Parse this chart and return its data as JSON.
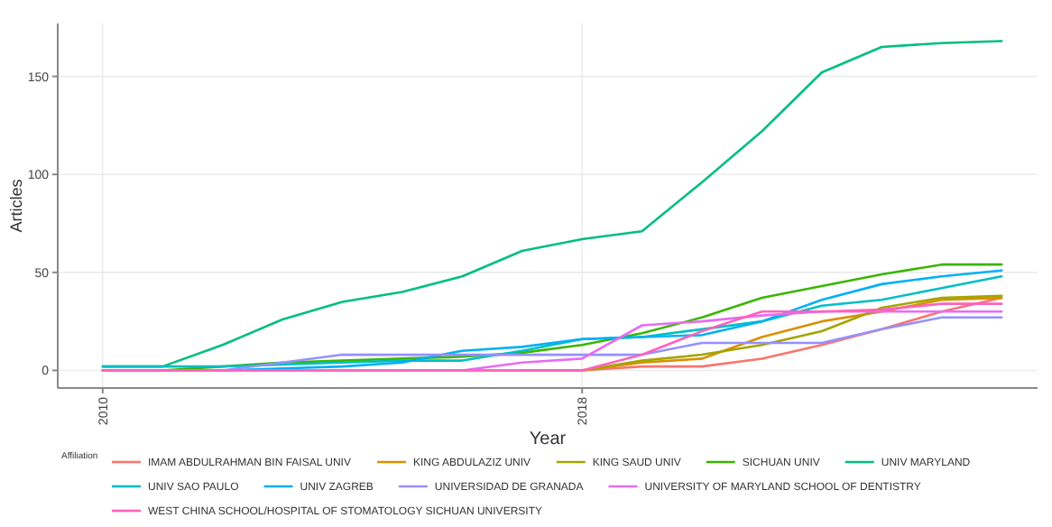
{
  "chart_data": {
    "type": "line",
    "xlabel": "Year",
    "ylabel": "Articles",
    "legend_title": "Affiliation",
    "legend": "bottom",
    "grid": true,
    "line_style": "solid",
    "marker": "none",
    "x": [
      2010,
      2011,
      2012,
      2013,
      2014,
      2015,
      2016,
      2017,
      2018,
      2019,
      2020,
      2021,
      2022,
      2023,
      2024,
      2025
    ],
    "xlim": [
      2009.25,
      2025.6
    ],
    "xticks": [
      2010,
      2018
    ],
    "ylim": [
      -9,
      177
    ],
    "yticks": [
      0,
      50,
      100,
      150
    ],
    "series": [
      {
        "name": "IMAM ABDULRAHMAN BIN FAISAL UNIV",
        "color": "#f8766d",
        "values": [
          null,
          null,
          null,
          null,
          null,
          0,
          0,
          0,
          0,
          2,
          2,
          6,
          13,
          21,
          30,
          37
        ]
      },
      {
        "name": "KING ABDULAZIZ UNIV",
        "color": "#d89000",
        "values": [
          null,
          null,
          null,
          null,
          null,
          null,
          null,
          0,
          0,
          4,
          6,
          17,
          25,
          30,
          36,
          37
        ]
      },
      {
        "name": "KING SAUD UNIV",
        "color": "#a3a500",
        "values": [
          null,
          null,
          null,
          null,
          null,
          null,
          null,
          0,
          0,
          5,
          8,
          13,
          20,
          32,
          37,
          38
        ]
      },
      {
        "name": "SICHUAN UNIV",
        "color": "#39b600",
        "values": [
          0,
          0,
          2,
          4,
          5,
          6,
          7,
          9,
          13,
          19,
          27,
          37,
          43,
          49,
          54,
          54
        ]
      },
      {
        "name": "UNIV MARYLAND",
        "color": "#00bf7d",
        "values": [
          2,
          2,
          13,
          26,
          35,
          40,
          48,
          61,
          67,
          71,
          96,
          122,
          152,
          165,
          167,
          168
        ]
      },
      {
        "name": "UNIV SAO PAULO",
        "color": "#00bfc4",
        "values": [
          2,
          2,
          2,
          3,
          4,
          5,
          5,
          10,
          16,
          17,
          21,
          25,
          33,
          36,
          42,
          48
        ]
      },
      {
        "name": "UNIV ZAGREB",
        "color": "#00b0f6",
        "values": [
          0,
          0,
          0,
          1,
          2,
          4,
          10,
          12,
          16,
          17,
          18,
          25,
          36,
          44,
          48,
          51
        ]
      },
      {
        "name": "UNIVERSIDAD DE GRANADA",
        "color": "#9590ff",
        "values": [
          0,
          0,
          0,
          4,
          8,
          8,
          8,
          8,
          8,
          8,
          14,
          14,
          14,
          21,
          27,
          27
        ]
      },
      {
        "name": "UNIVERSITY OF MARYLAND SCHOOL OF DENTISTRY",
        "color": "#e76bf3",
        "values": [
          0,
          0,
          0,
          0,
          0,
          0,
          0,
          4,
          6,
          23,
          25,
          28,
          30,
          30,
          30,
          30
        ]
      },
      {
        "name": "WEST CHINA SCHOOL/HOSPITAL OF STOMATOLOGY SICHUAN UNIVERSITY",
        "color": "#ff62bc",
        "values": [
          0,
          0,
          0,
          0,
          0,
          0,
          0,
          0,
          0,
          8,
          20,
          30,
          30,
          31,
          34,
          34
        ]
      }
    ]
  }
}
